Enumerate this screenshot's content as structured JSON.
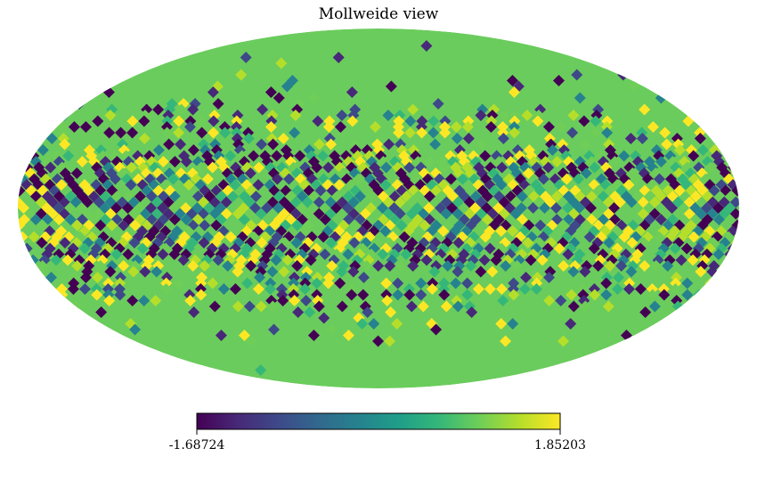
{
  "chart_data": {
    "type": "heatmap",
    "projection": "mollweide",
    "title": "Mollweide view",
    "colormap": "viridis",
    "colorbar": {
      "min_label": "-1.68724",
      "max_label": "1.85203",
      "min": -1.68724,
      "max": 1.85203
    },
    "background_value_color": "#6acc5c",
    "pattern": "random pixel values concentrated in a band around the equator; higher latitudes uniform"
  },
  "colors": {
    "viridis_stops": [
      "#440154",
      "#482878",
      "#3e4989",
      "#31688e",
      "#26828e",
      "#1f9e89",
      "#35b779",
      "#6ece58",
      "#b5de2b",
      "#fde725"
    ],
    "background_fill": "#6acc5c"
  }
}
